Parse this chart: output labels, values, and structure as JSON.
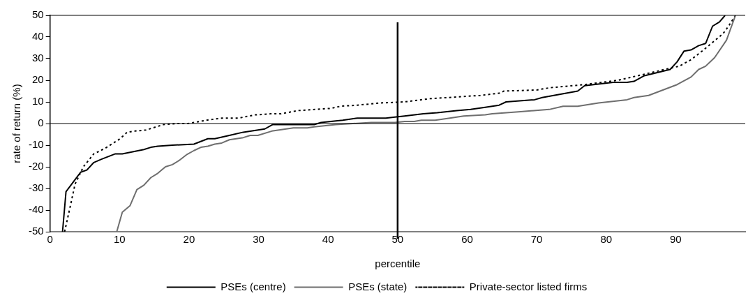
{
  "chart_data": {
    "type": "line",
    "xlabel": "percentile",
    "ylabel": "rate of return (%)",
    "xlim": [
      0,
      100
    ],
    "xticks": [
      0,
      10,
      20,
      30,
      40,
      50,
      60,
      70,
      80,
      90
    ],
    "ylim": [
      -50,
      50
    ],
    "yticks": [
      -50,
      -40,
      -30,
      -20,
      -10,
      0,
      10,
      20,
      30,
      40,
      50
    ],
    "grid": false,
    "legend": "bottom",
    "marker": "none",
    "ref_lines": [
      {
        "axis": "x",
        "value": 50,
        "color": "#000000"
      },
      {
        "axis": "y",
        "value": 0,
        "color": "#000000"
      }
    ],
    "series": [
      {
        "name": "PSEs (centre)",
        "color": "#000000",
        "line_style": "solid",
        "x": [
          1.8,
          2.3,
          4.4,
          5.3,
          6.3,
          7.4,
          9.4,
          10.4,
          13.5,
          14.5,
          15.5,
          17.6,
          20.7,
          22.7,
          23.7,
          25.8,
          27.8,
          30.9,
          32,
          34,
          38,
          39,
          40.4,
          42.1,
          44.2,
          48.3,
          49.6,
          51,
          53.7,
          55.7,
          58.5,
          60.5,
          62.6,
          64.6,
          65.6,
          69.7,
          70.8,
          75.9,
          76.9,
          81,
          83,
          84,
          85.4,
          89.2,
          90.2,
          91.2,
          92.2,
          93.3,
          94.3,
          95.3,
          96.3,
          97.1
        ],
        "values": [
          -50,
          -31.5,
          -22.5,
          -21.5,
          -18,
          -16.5,
          -14,
          -14,
          -12,
          -11,
          -10.5,
          -10,
          -9.5,
          -7,
          -7,
          -5.5,
          -4,
          -2.5,
          -0.5,
          -0.5,
          -0.5,
          0.5,
          1,
          1.5,
          2.5,
          2.5,
          3,
          3.5,
          4.5,
          5,
          6,
          6.5,
          7.5,
          8.5,
          10,
          11,
          12,
          15,
          17.5,
          19,
          19,
          19.5,
          22,
          25,
          28.5,
          33.5,
          34,
          36,
          37,
          45,
          47,
          50
        ]
      },
      {
        "name": "PSEs (state)",
        "color": "#6e6e6e",
        "line_style": "solid",
        "x": [
          9.6,
          10.4,
          11.5,
          12.5,
          13.5,
          14.5,
          15.5,
          16.6,
          17.6,
          18.6,
          19.6,
          20.7,
          21.7,
          22.7,
          23.7,
          24.7,
          25.8,
          27.8,
          28.8,
          29.9,
          31.9,
          35,
          37,
          38,
          41.1,
          46.2,
          49.6,
          51,
          52.4,
          53.4,
          55.4,
          57.5,
          59.5,
          62.6,
          63.6,
          67.7,
          71.8,
          73.8,
          75.9,
          78.9,
          83,
          84,
          86.1,
          90.2,
          92.2,
          93.3,
          94.3,
          95.6,
          97.3,
          98.6
        ],
        "values": [
          -50,
          -41,
          -38,
          -30.5,
          -28.5,
          -25,
          -23,
          -20,
          -19,
          -17,
          -14.5,
          -12.5,
          -11,
          -10.5,
          -9.5,
          -9,
          -7.5,
          -6.5,
          -5.5,
          -5.5,
          -3.5,
          -2,
          -2,
          -1.5,
          -0.5,
          0.5,
          0.5,
          1,
          1,
          1.5,
          1.5,
          2.5,
          3.5,
          4,
          4.5,
          5.5,
          6.5,
          8,
          8,
          9.5,
          11,
          12,
          13,
          18,
          21.5,
          25,
          26.5,
          30.5,
          38.5,
          50
        ]
      },
      {
        "name": "Private-sector listed firms",
        "color": "#000000",
        "line_style": "dotted",
        "x": [
          2.1,
          3,
          3.6,
          4.8,
          6.3,
          7.9,
          10.1,
          11.1,
          12.2,
          13.8,
          14.8,
          16.3,
          18.3,
          19.9,
          22.4,
          24.7,
          27.1,
          29.5,
          31.7,
          33.2,
          35.7,
          40.4,
          41.8,
          44.2,
          47.5,
          51,
          54.7,
          57.2,
          61.9,
          64.6,
          65.3,
          70,
          71.8,
          76.9,
          81.7,
          85.1,
          88.4,
          90.5,
          92.2,
          94,
          96.8,
          97.6,
          98.6
        ],
        "values": [
          -50,
          -37,
          -28,
          -20,
          -14,
          -11.5,
          -7,
          -4,
          -3.5,
          -3,
          -2,
          -0.5,
          0,
          0,
          1.5,
          2.5,
          2.5,
          4,
          4.5,
          4.5,
          6,
          7,
          8,
          8.5,
          9.5,
          10,
          11.5,
          12,
          13,
          14,
          15,
          15.5,
          16.5,
          18,
          20,
          22.5,
          25,
          26.5,
          29.5,
          34,
          41.5,
          45,
          50
        ]
      }
    ]
  }
}
